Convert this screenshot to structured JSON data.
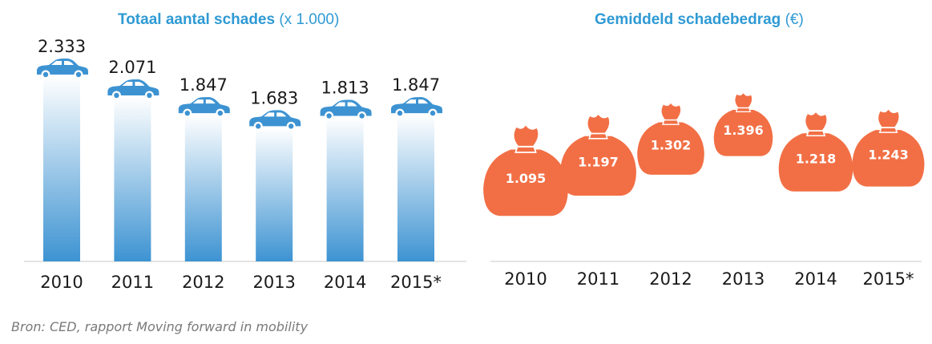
{
  "source": "Bron: CED, rapport Moving forward in mobility",
  "chart_data": [
    {
      "type": "bar",
      "title": "Totaal aantal schades",
      "title_unit": "(x 1.000)",
      "categories": [
        "2010",
        "2011",
        "2012",
        "2013",
        "2014",
        "2015*"
      ],
      "values": [
        2333,
        2071,
        1847,
        1683,
        1813,
        1847
      ],
      "value_labels": [
        "2.333",
        "2.071",
        "1.847",
        "1.683",
        "1.813",
        "1.847"
      ],
      "marker_icon": "car-icon",
      "colors": {
        "title": "#2f9ad4",
        "bar_top": "#ffffff",
        "bar_bottom": "#3d93d2",
        "car": "#3d93d2"
      }
    },
    {
      "type": "scatter",
      "title": "Gemiddeld schadebedrag",
      "title_unit": "(€)",
      "categories": [
        "2010",
        "2011",
        "2012",
        "2013",
        "2014",
        "2015*"
      ],
      "values": [
        1095,
        1197,
        1302,
        1396,
        1218,
        1243
      ],
      "value_labels": [
        "1.095",
        "1.197",
        "1.302",
        "1.396",
        "1.218",
        "1.243"
      ],
      "marker_icon": "money-bag-icon",
      "colors": {
        "title": "#2f9ad4",
        "bag": "#f26f45",
        "label": "#ffffff"
      }
    }
  ]
}
